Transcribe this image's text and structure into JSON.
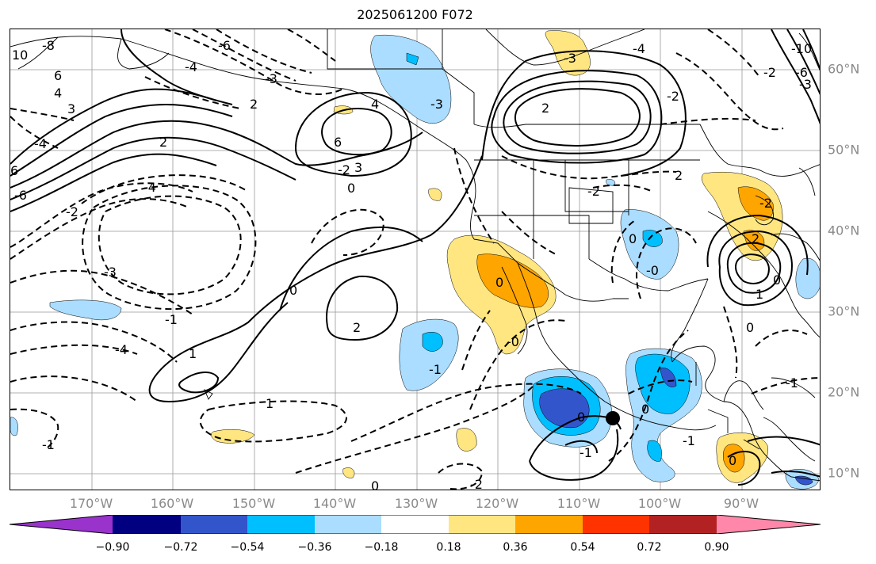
{
  "title": "2025061200 F072",
  "lon_labels": [
    "170°W",
    "160°W",
    "150°W",
    "140°W",
    "130°W",
    "120°W",
    "110°W",
    "100°W",
    "90°W"
  ],
  "lat_labels": [
    "60°N",
    "50°N",
    "40°N",
    "30°N",
    "20°N",
    "10°N"
  ],
  "colorbar": {
    "colors": [
      "#9933cc",
      "#000080",
      "#3355cc",
      "#00bfff",
      "#aaddff",
      "#ffffff",
      "#ffe680",
      "#ffa500",
      "#ff3300",
      "#b22222",
      "#ff88aa"
    ],
    "labels": [
      "−0.90",
      "−0.72",
      "−0.54",
      "−0.36",
      "−0.18",
      "0.18",
      "0.36",
      "0.54",
      "0.72",
      "0.90"
    ]
  },
  "contour_labels": {
    "c1": "-6",
    "c2": "-8",
    "c3": "10",
    "c4": "6",
    "c5": "4",
    "c6": "3",
    "c7": "-4",
    "c8": "-3",
    "c9": "2",
    "c10": "-4",
    "c11": "6",
    "c12": "2",
    "c13": "-6",
    "c14": "-4",
    "c15": "-3",
    "c16": "-2",
    "c17": "4",
    "c18": "6",
    "c19": "-2",
    "c20": "3",
    "c21": "0",
    "c22": "-1",
    "c23": "-4",
    "c24": "-3",
    "c25": "-1",
    "c26": "0",
    "c27": "0",
    "c28": "2",
    "c29": "1",
    "c30": "1",
    "c31": "-1",
    "c32": "0",
    "c33": "-3",
    "c34": "2",
    "c35": "-4",
    "c36": "-2",
    "c37": "-2",
    "c38": "2",
    "c39": "0",
    "c40": "-0",
    "c41": "-0",
    "c42": "0",
    "c43": "0",
    "c44": "-1",
    "c45": "-1",
    "c46": "2",
    "c47": "0",
    "c48": "1",
    "c49": "-1",
    "c50": "0",
    "c51": "-2",
    "c52": "-10",
    "c53": "-6",
    "c54": "-3",
    "c55": "-2",
    "c56": "-2",
    "c57": "0"
  }
}
